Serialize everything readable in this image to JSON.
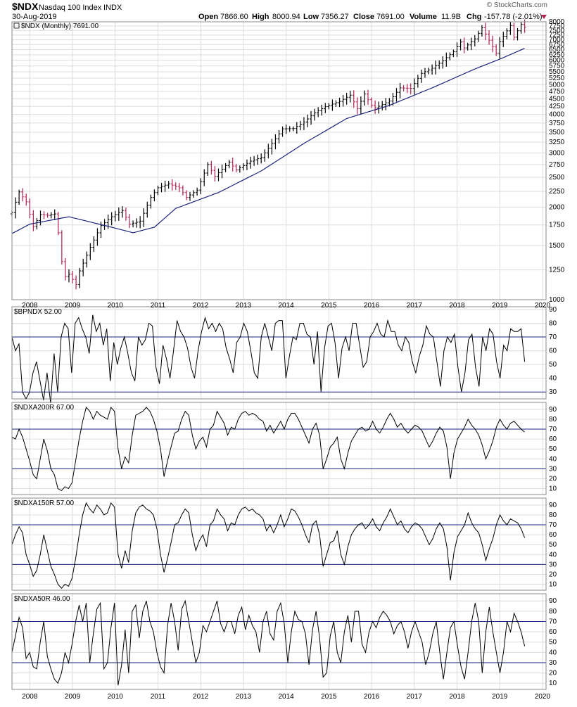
{
  "header": {
    "symbol": "$NDX",
    "name": "Nasdaq 100 Index",
    "exchange": "INDX",
    "date": "30-Aug-2019",
    "brand": "© StockCharts.com",
    "open_label": "Open",
    "open": "7866.60",
    "high_label": "High",
    "high": "8000.94",
    "low_label": "Low",
    "low": "7356.27",
    "close_label": "Close",
    "close": "7691.00",
    "volume_label": "Volume",
    "volume": "11.9B",
    "chg_label": "Chg",
    "chg": "-157.78 (-2.01%)"
  },
  "colors": {
    "up": "#000000",
    "down": "#b0204f",
    "ma": "#1a237e",
    "hline": "#1a237e",
    "grid": "#dcdcdc",
    "indicator": "#000000"
  },
  "chart_data": [
    {
      "type": "ohlc",
      "panel": "price",
      "title": "$NDX (Monthly) 7691.00",
      "y_scale": "log",
      "ylim": [
        1000,
        8000
      ],
      "y_ticks": [
        1000,
        1250,
        1500,
        1750,
        2000,
        2250,
        2500,
        2750,
        3000,
        3250,
        3500,
        3750,
        4000,
        4250,
        4500,
        4750,
        5000,
        5250,
        5500,
        5750,
        6000,
        6250,
        6500,
        6750,
        7000,
        7250,
        7500,
        7750,
        8000
      ],
      "x_ticks": [
        "2008",
        "2009",
        "2010",
        "2011",
        "2012",
        "2013",
        "2014",
        "2015",
        "2016",
        "2017",
        "2018",
        "2019",
        "2020"
      ],
      "close_anchors": [
        [
          "2007-08",
          1920
        ],
        [
          "2007-10",
          2240
        ],
        [
          "2007-12",
          2080
        ],
        [
          "2008-02",
          1730
        ],
        [
          "2008-04",
          1890
        ],
        [
          "2008-06",
          1880
        ],
        [
          "2008-08",
          1900
        ],
        [
          "2008-09",
          1650
        ],
        [
          "2008-10",
          1330
        ],
        [
          "2008-11",
          1190
        ],
        [
          "2008-12",
          1210
        ],
        [
          "2009-02",
          1120
        ],
        [
          "2009-03",
          1240
        ],
        [
          "2009-06",
          1480
        ],
        [
          "2009-09",
          1740
        ],
        [
          "2009-12",
          1860
        ],
        [
          "2010-03",
          1950
        ],
        [
          "2010-05",
          1760
        ],
        [
          "2010-08",
          1800
        ],
        [
          "2010-11",
          2150
        ],
        [
          "2011-01",
          2310
        ],
        [
          "2011-04",
          2380
        ],
        [
          "2011-07",
          2310
        ],
        [
          "2011-09",
          2150
        ],
        [
          "2011-12",
          2270
        ],
        [
          "2012-03",
          2750
        ],
        [
          "2012-05",
          2520
        ],
        [
          "2012-09",
          2800
        ],
        [
          "2012-11",
          2640
        ],
        [
          "2013-03",
          2820
        ],
        [
          "2013-06",
          2900
        ],
        [
          "2013-09",
          3210
        ],
        [
          "2013-12",
          3590
        ],
        [
          "2014-03",
          3600
        ],
        [
          "2014-06",
          3780
        ],
        [
          "2014-09",
          4050
        ],
        [
          "2014-12",
          4240
        ],
        [
          "2015-04",
          4410
        ],
        [
          "2015-07",
          4620
        ],
        [
          "2015-09",
          4180
        ],
        [
          "2015-11",
          4660
        ],
        [
          "2016-01",
          4280
        ],
        [
          "2016-02",
          4200
        ],
        [
          "2016-06",
          4420
        ],
        [
          "2016-09",
          4880
        ],
        [
          "2016-12",
          4860
        ],
        [
          "2017-03",
          5440
        ],
        [
          "2017-06",
          5650
        ],
        [
          "2017-09",
          5980
        ],
        [
          "2017-12",
          6400
        ],
        [
          "2018-02",
          6880
        ],
        [
          "2018-03",
          6580
        ],
        [
          "2018-06",
          7040
        ],
        [
          "2018-08",
          7650
        ],
        [
          "2018-10",
          6970
        ],
        [
          "2018-12",
          6330
        ],
        [
          "2019-01",
          6900
        ],
        [
          "2019-04",
          7780
        ],
        [
          "2019-05",
          7130
        ],
        [
          "2019-07",
          7850
        ],
        [
          "2019-08",
          7691
        ]
      ],
      "ma_anchors": [
        [
          "2007-08",
          1640
        ],
        [
          "2008-01",
          1760
        ],
        [
          "2008-12",
          1860
        ],
        [
          "2009-12",
          1720
        ],
        [
          "2010-06",
          1650
        ],
        [
          "2010-12",
          1720
        ],
        [
          "2011-06",
          1980
        ],
        [
          "2012-06",
          2230
        ],
        [
          "2013-06",
          2620
        ],
        [
          "2014-06",
          3220
        ],
        [
          "2015-06",
          3880
        ],
        [
          "2016-06",
          4280
        ],
        [
          "2017-06",
          4880
        ],
        [
          "2018-06",
          5620
        ],
        [
          "2019-01",
          6050
        ],
        [
          "2019-08",
          6560
        ]
      ]
    },
    {
      "type": "line",
      "panel": "indicator",
      "title": "$BPNDX 52.00",
      "ylim": [
        25,
        92
      ],
      "y_ticks": [
        30,
        40,
        50,
        60,
        70,
        80,
        90
      ],
      "hlines": [
        70,
        30
      ],
      "values": [
        70,
        60,
        65,
        30,
        25,
        30,
        44,
        52,
        38,
        24,
        44,
        22,
        58,
        30,
        70,
        80,
        76,
        44,
        80,
        84,
        76,
        70,
        58,
        86,
        74,
        80,
        64,
        76,
        38,
        66,
        50,
        62,
        70,
        58,
        44,
        38,
        70,
        64,
        68,
        80,
        78,
        48,
        36,
        64,
        54,
        40,
        60,
        82,
        74,
        70,
        62,
        48,
        40,
        60,
        74,
        84,
        76,
        80,
        74,
        80,
        76,
        62,
        54,
        44,
        66,
        70,
        80,
        74,
        60,
        44,
        40,
        70,
        80,
        70,
        60,
        80,
        82,
        82,
        40,
        56,
        70,
        68,
        80,
        80,
        72,
        70,
        50,
        74,
        30,
        62,
        78,
        80,
        66,
        40,
        62,
        70,
        60,
        80,
        80,
        64,
        48,
        52,
        70,
        74,
        80,
        72,
        70,
        82,
        74,
        74,
        64,
        60,
        70,
        66,
        52,
        44,
        56,
        64,
        78,
        72,
        70,
        52,
        34,
        60,
        70,
        66,
        72,
        48,
        30,
        44,
        68,
        72,
        48,
        34,
        70,
        60,
        76,
        72,
        52,
        40,
        64,
        60,
        76,
        74,
        74,
        76,
        52
      ]
    },
    {
      "type": "line",
      "panel": "indicator",
      "title": "$NDXA200R 67.00",
      "ylim": [
        4,
        97
      ],
      "y_ticks": [
        10,
        20,
        30,
        40,
        50,
        60,
        70,
        80,
        90
      ],
      "hlines": [
        70,
        30
      ],
      "values": [
        62,
        60,
        70,
        62,
        50,
        38,
        24,
        20,
        40,
        60,
        48,
        30,
        24,
        10,
        8,
        12,
        10,
        16,
        38,
        60,
        78,
        92,
        88,
        80,
        88,
        84,
        82,
        80,
        92,
        88,
        50,
        30,
        42,
        36,
        64,
        84,
        86,
        88,
        92,
        88,
        80,
        68,
        50,
        22,
        38,
        52,
        66,
        68,
        80,
        88,
        84,
        64,
        50,
        58,
        62,
        52,
        70,
        74,
        88,
        82,
        76,
        64,
        72,
        70,
        80,
        86,
        88,
        84,
        86,
        84,
        80,
        78,
        68,
        74,
        66,
        72,
        78,
        70,
        80,
        86,
        86,
        80,
        72,
        64,
        56,
        70,
        76,
        64,
        30,
        40,
        52,
        56,
        62,
        40,
        30,
        46,
        58,
        64,
        70,
        72,
        68,
        70,
        78,
        70,
        66,
        72,
        80,
        86,
        80,
        72,
        76,
        70,
        66,
        70,
        74,
        72,
        68,
        60,
        52,
        58,
        66,
        72,
        68,
        52,
        20,
        46,
        60,
        66,
        72,
        80,
        74,
        70,
        64,
        54,
        40,
        48,
        58,
        72,
        80,
        74,
        70,
        76,
        78,
        74,
        70,
        67
      ]
    },
    {
      "type": "line",
      "panel": "indicator",
      "title": "$NDXA150R 57.00",
      "ylim": [
        4,
        97
      ],
      "y_ticks": [
        10,
        20,
        30,
        40,
        50,
        60,
        70,
        80,
        90
      ],
      "hlines": [
        70,
        30
      ],
      "values": [
        50,
        60,
        68,
        62,
        40,
        30,
        18,
        24,
        40,
        60,
        44,
        28,
        20,
        10,
        6,
        10,
        8,
        16,
        36,
        60,
        80,
        92,
        86,
        82,
        90,
        86,
        80,
        82,
        92,
        88,
        40,
        26,
        44,
        32,
        64,
        82,
        88,
        90,
        86,
        84,
        80,
        66,
        40,
        22,
        36,
        52,
        70,
        72,
        80,
        86,
        82,
        60,
        44,
        54,
        60,
        48,
        70,
        74,
        86,
        80,
        76,
        64,
        72,
        70,
        80,
        86,
        88,
        84,
        86,
        82,
        80,
        76,
        64,
        70,
        62,
        70,
        80,
        68,
        76,
        86,
        84,
        78,
        70,
        60,
        52,
        70,
        74,
        60,
        28,
        40,
        52,
        54,
        64,
        40,
        30,
        48,
        60,
        66,
        70,
        72,
        66,
        70,
        76,
        68,
        64,
        72,
        78,
        86,
        78,
        70,
        74,
        66,
        62,
        68,
        72,
        70,
        66,
        58,
        50,
        56,
        66,
        72,
        66,
        48,
        14,
        42,
        58,
        64,
        70,
        82,
        72,
        66,
        62,
        50,
        34,
        46,
        56,
        70,
        80,
        74,
        70,
        76,
        74,
        72,
        66,
        57
      ]
    },
    {
      "type": "line",
      "panel": "indicator",
      "title": "$NDXA50R 46.00",
      "ylim": [
        4,
        97
      ],
      "y_ticks": [
        10,
        20,
        30,
        40,
        50,
        60,
        70,
        80,
        90
      ],
      "hlines": [
        70,
        30
      ],
      "values": [
        40,
        56,
        74,
        64,
        34,
        40,
        26,
        24,
        50,
        70,
        36,
        24,
        14,
        10,
        20,
        40,
        30,
        48,
        70,
        86,
        70,
        88,
        30,
        58,
        82,
        88,
        24,
        30,
        64,
        88,
        8,
        28,
        62,
        20,
        80,
        86,
        54,
        80,
        90,
        70,
        60,
        40,
        26,
        20,
        66,
        88,
        70,
        42,
        82,
        90,
        70,
        50,
        30,
        40,
        66,
        60,
        70,
        80,
        90,
        68,
        60,
        70,
        70,
        58,
        76,
        84,
        62,
        76,
        66,
        60,
        40,
        70,
        80,
        58,
        52,
        80,
        88,
        68,
        30,
        60,
        80,
        72,
        70,
        58,
        28,
        62,
        80,
        54,
        16,
        20,
        56,
        70,
        40,
        30,
        60,
        76,
        50,
        80,
        80,
        48,
        40,
        60,
        70,
        64,
        74,
        80,
        76,
        70,
        58,
        66,
        70,
        60,
        44,
        60,
        70,
        60,
        50,
        28,
        40,
        58,
        70,
        40,
        14,
        40,
        64,
        70,
        46,
        26,
        14,
        40,
        70,
        88,
        70,
        20,
        60,
        84,
        60,
        40,
        20,
        40,
        70,
        60,
        78,
        70,
        60,
        46
      ]
    }
  ]
}
